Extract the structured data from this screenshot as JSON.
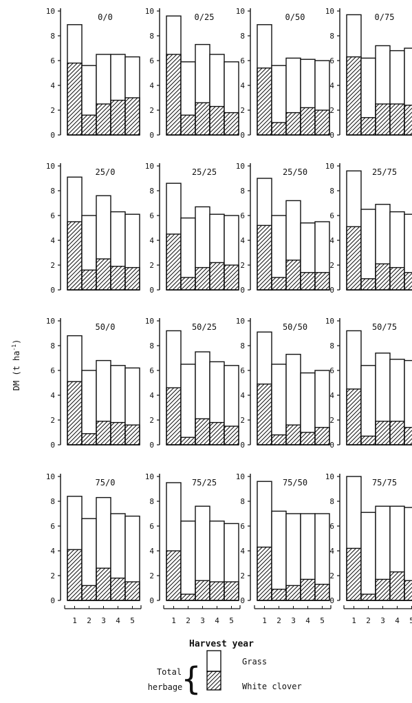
{
  "y_axis_label": "DM (t ha",
  "y_axis_label_sup": "-1",
  "y_ticks": [
    "0",
    "2",
    "4",
    "6",
    "8",
    "10"
  ],
  "x_ticks": [
    "1",
    "2",
    "3",
    "4",
    "5"
  ],
  "x_axis_label": "Harvest year",
  "legend": {
    "total_label_line1": "Total",
    "total_label_line2": "herbage",
    "grass_label": "Grass",
    "clover_label": "White clover",
    "brace": "{"
  },
  "chart_data": {
    "type": "bar",
    "stacked": true,
    "x": [
      1,
      2,
      3,
      4,
      5
    ],
    "ylim": [
      0,
      10
    ],
    "panels": [
      {
        "title": "0/0",
        "total": [
          8.9,
          5.6,
          6.5,
          6.5,
          6.3
        ],
        "white_clover": [
          5.8,
          1.6,
          2.5,
          2.8,
          3.0
        ]
      },
      {
        "title": "0/25",
        "total": [
          9.6,
          5.9,
          7.3,
          6.5,
          5.9
        ],
        "white_clover": [
          6.5,
          1.6,
          2.6,
          2.3,
          1.8
        ]
      },
      {
        "title": "0/50",
        "total": [
          8.9,
          5.6,
          6.2,
          6.1,
          6.0
        ],
        "white_clover": [
          5.4,
          1.0,
          1.8,
          2.2,
          2.0
        ]
      },
      {
        "title": "0/75",
        "total": [
          9.7,
          6.2,
          7.2,
          6.8,
          7.0
        ],
        "white_clover": [
          6.3,
          1.4,
          2.5,
          2.5,
          2.4
        ]
      },
      {
        "title": "25/0",
        "total": [
          9.1,
          6.0,
          7.6,
          6.3,
          6.1
        ],
        "white_clover": [
          5.5,
          1.6,
          2.5,
          1.9,
          1.8
        ]
      },
      {
        "title": "25/25",
        "total": [
          8.6,
          5.8,
          6.7,
          6.1,
          6.0
        ],
        "white_clover": [
          4.5,
          1.0,
          1.8,
          2.2,
          2.0
        ]
      },
      {
        "title": "25/50",
        "total": [
          9.0,
          6.0,
          7.2,
          5.4,
          5.5
        ],
        "white_clover": [
          5.2,
          1.0,
          2.4,
          1.4,
          1.4
        ]
      },
      {
        "title": "25/75",
        "total": [
          9.6,
          6.5,
          6.9,
          6.3,
          6.1
        ],
        "white_clover": [
          5.1,
          0.9,
          2.1,
          1.8,
          1.4
        ]
      },
      {
        "title": "50/0",
        "total": [
          8.8,
          6.0,
          6.8,
          6.4,
          6.2
        ],
        "white_clover": [
          5.1,
          0.9,
          1.9,
          1.8,
          1.6
        ]
      },
      {
        "title": "50/25",
        "total": [
          9.2,
          6.5,
          7.5,
          6.7,
          6.4
        ],
        "white_clover": [
          4.6,
          0.6,
          2.1,
          1.8,
          1.5
        ]
      },
      {
        "title": "50/50",
        "total": [
          9.1,
          6.5,
          7.3,
          5.8,
          6.0
        ],
        "white_clover": [
          4.9,
          0.8,
          1.6,
          1.0,
          1.4
        ]
      },
      {
        "title": "50/75",
        "total": [
          9.2,
          6.4,
          7.4,
          6.9,
          6.8
        ],
        "white_clover": [
          4.5,
          0.7,
          1.9,
          1.9,
          1.4
        ]
      },
      {
        "title": "75/0",
        "total": [
          8.4,
          6.6,
          8.3,
          7.0,
          6.8
        ],
        "white_clover": [
          4.1,
          1.2,
          2.6,
          1.8,
          1.5
        ]
      },
      {
        "title": "75/25",
        "total": [
          9.5,
          6.4,
          7.6,
          6.4,
          6.2
        ],
        "white_clover": [
          4.0,
          0.5,
          1.6,
          1.5,
          1.5
        ]
      },
      {
        "title": "75/50",
        "total": [
          9.6,
          7.2,
          7.0,
          7.0,
          7.0
        ],
        "white_clover": [
          4.3,
          0.9,
          1.2,
          1.7,
          1.3
        ]
      },
      {
        "title": "75/75",
        "total": [
          10.0,
          7.1,
          7.6,
          7.6,
          7.5
        ],
        "white_clover": [
          4.2,
          0.5,
          1.7,
          2.3,
          1.6
        ]
      }
    ]
  }
}
